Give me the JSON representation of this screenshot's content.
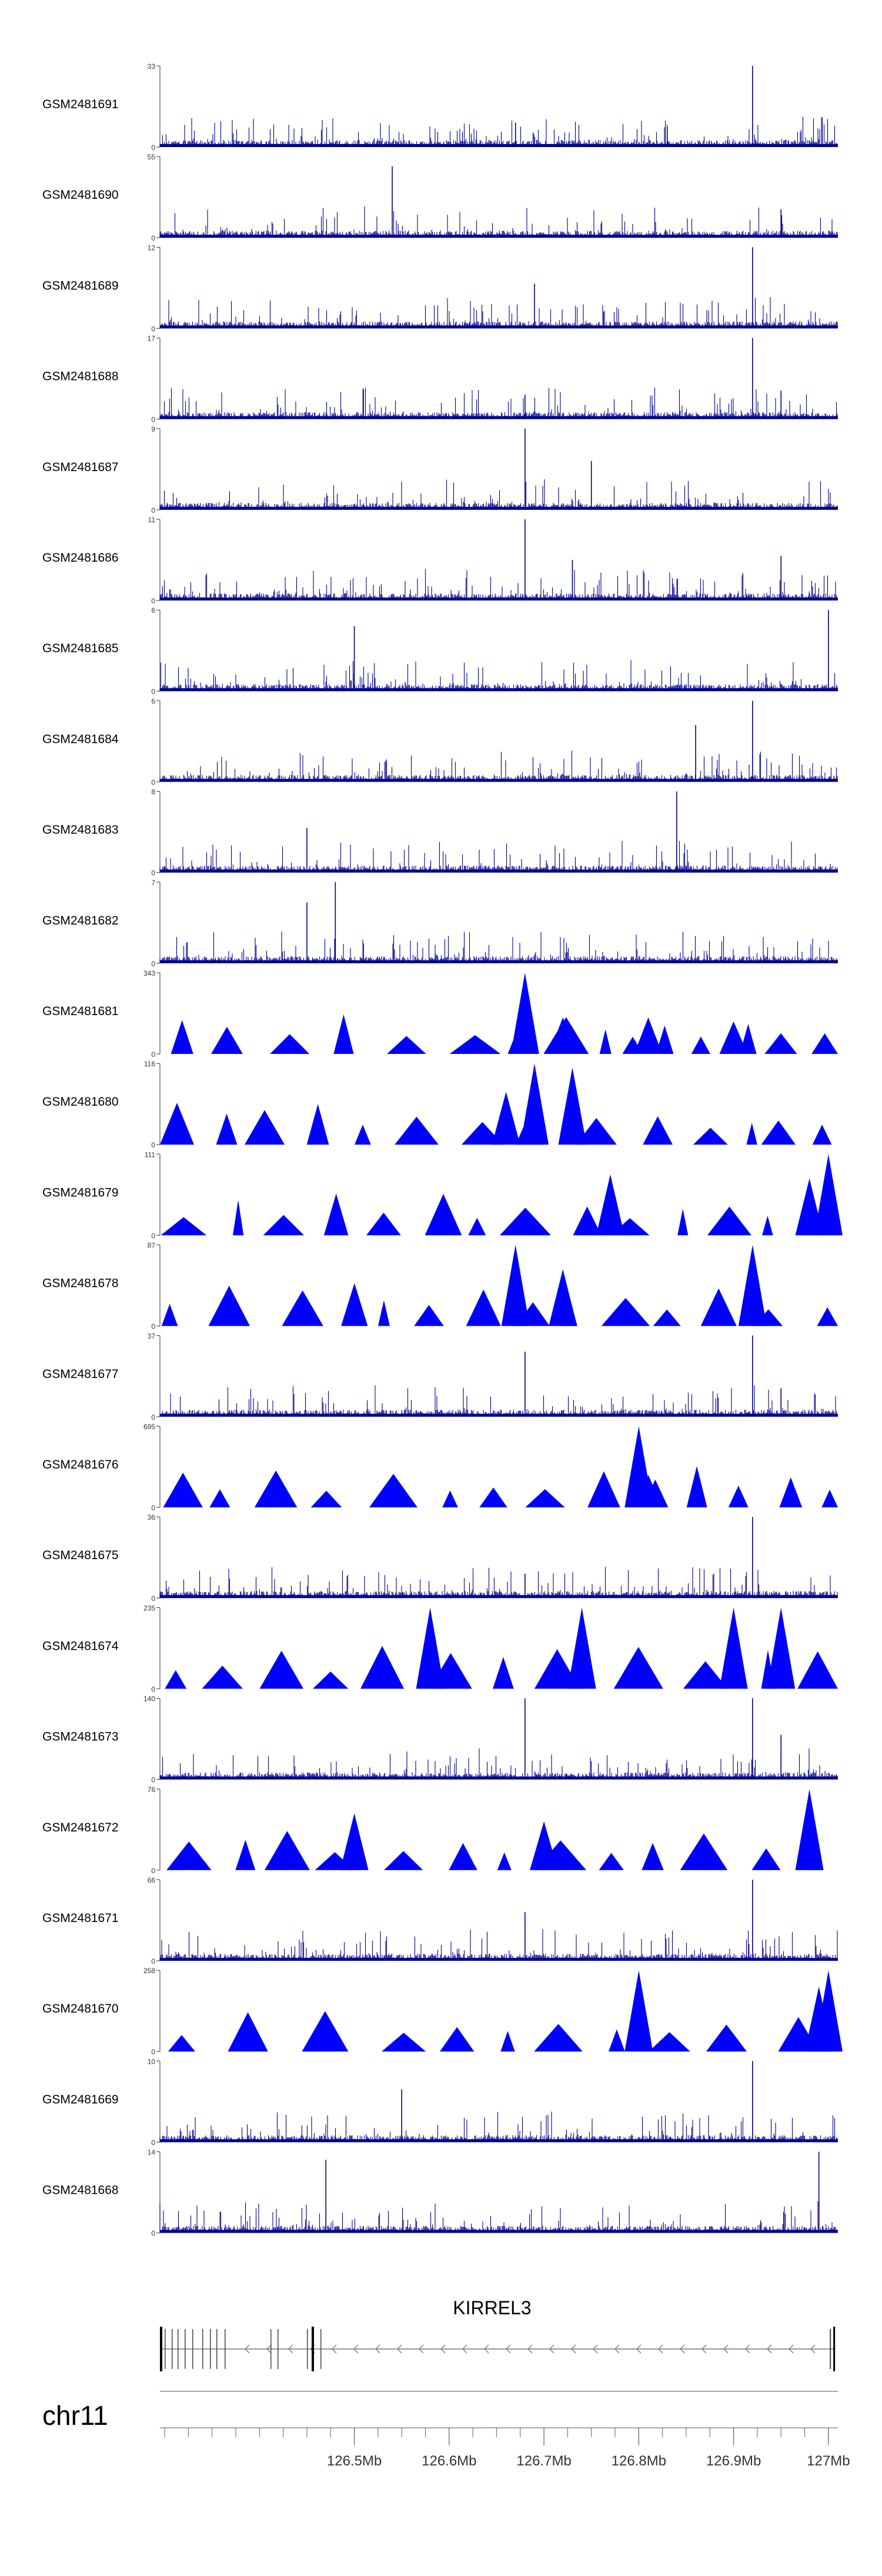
{
  "chart_data": {
    "type": "genome-tracks",
    "track_color": "#0000ff",
    "signal_color": "#00008b",
    "tracks": [
      {
        "name": "GSM2481691",
        "ymax": "33",
        "style": "signal",
        "peaks": [
          [
            126.67,
            0.3
          ],
          [
            126.92,
            1.0
          ],
          [
            126.83,
            0.25
          ]
        ]
      },
      {
        "name": "GSM2481690",
        "ymax": "55",
        "style": "signal",
        "peaks": [
          [
            126.54,
            0.88
          ],
          [
            126.95,
            0.35
          ]
        ]
      },
      {
        "name": "GSM2481689",
        "ymax": "12",
        "style": "signal",
        "peaks": [
          [
            126.92,
            1.0
          ],
          [
            126.69,
            0.55
          ]
        ]
      },
      {
        "name": "GSM2481688",
        "ymax": "17",
        "style": "signal",
        "peaks": [
          [
            126.92,
            1.0
          ],
          [
            126.95,
            0.35
          ],
          [
            126.68,
            0.3
          ]
        ]
      },
      {
        "name": "GSM2481687",
        "ymax": "9",
        "style": "signal",
        "peaks": [
          [
            126.68,
            1.0
          ],
          [
            126.75,
            0.6
          ]
        ]
      },
      {
        "name": "GSM2481686",
        "ymax": "11",
        "style": "signal",
        "peaks": [
          [
            126.68,
            1.0
          ],
          [
            126.73,
            0.5
          ],
          [
            126.95,
            0.55
          ]
        ]
      },
      {
        "name": "GSM2481685",
        "ymax": "6",
        "style": "signal",
        "peaks": [
          [
            127.0,
            1.0
          ],
          [
            126.5,
            0.8
          ]
        ]
      },
      {
        "name": "GSM2481684",
        "ymax": "6",
        "style": "signal",
        "peaks": [
          [
            126.92,
            1.0
          ],
          [
            126.86,
            0.7
          ]
        ]
      },
      {
        "name": "GSM2481683",
        "ymax": "8",
        "style": "signal",
        "peaks": [
          [
            126.84,
            1.0
          ],
          [
            126.45,
            0.55
          ]
        ]
      },
      {
        "name": "GSM2481682",
        "ymax": "7",
        "style": "signal",
        "peaks": [
          [
            126.48,
            1.0
          ],
          [
            126.45,
            0.75
          ]
        ]
      },
      {
        "name": "GSM2481681",
        "ymax": "343",
        "style": "triangles",
        "peaks": [
          [
            126.68,
            1.0
          ],
          [
            126.72,
            0.45
          ],
          [
            126.81,
            0.45
          ],
          [
            126.9,
            0.4
          ]
        ]
      },
      {
        "name": "GSM2481680",
        "ymax": "116",
        "style": "triangles",
        "peaks": [
          [
            126.69,
            1.0
          ],
          [
            126.73,
            0.95
          ],
          [
            126.66,
            0.65
          ]
        ]
      },
      {
        "name": "GSM2481679",
        "ymax": "111",
        "style": "triangles",
        "peaks": [
          [
            127.0,
            1.0
          ],
          [
            126.77,
            0.75
          ],
          [
            126.98,
            0.7
          ]
        ]
      },
      {
        "name": "GSM2481678",
        "ymax": "87",
        "style": "triangles",
        "peaks": [
          [
            126.67,
            1.0
          ],
          [
            126.92,
            1.0
          ],
          [
            126.72,
            0.7
          ]
        ]
      },
      {
        "name": "GSM2481677",
        "ymax": "37",
        "style": "signal",
        "peaks": [
          [
            126.92,
            1.0
          ],
          [
            126.68,
            0.8
          ],
          [
            126.95,
            0.35
          ]
        ]
      },
      {
        "name": "GSM2481676",
        "ymax": "695",
        "style": "triangles",
        "peaks": [
          [
            126.8,
            1.0
          ],
          [
            126.81,
            0.4
          ]
        ]
      },
      {
        "name": "GSM2481675",
        "ymax": "36",
        "style": "signal",
        "peaks": [
          [
            126.92,
            1.0
          ],
          [
            126.68,
            0.3
          ]
        ]
      },
      {
        "name": "GSM2481674",
        "ymax": "235",
        "style": "triangles",
        "peaks": [
          [
            126.58,
            1.0
          ],
          [
            126.74,
            1.0
          ],
          [
            126.9,
            1.0
          ],
          [
            126.95,
            1.0
          ]
        ]
      },
      {
        "name": "GSM2481673",
        "ymax": "140",
        "style": "signal",
        "peaks": [
          [
            126.68,
            1.0
          ],
          [
            126.92,
            1.0
          ],
          [
            126.95,
            0.55
          ]
        ]
      },
      {
        "name": "GSM2481672",
        "ymax": "76",
        "style": "triangles",
        "peaks": [
          [
            126.5,
            0.7
          ],
          [
            126.7,
            0.6
          ],
          [
            126.98,
            1.0
          ]
        ]
      },
      {
        "name": "GSM2481671",
        "ymax": "66",
        "style": "signal",
        "peaks": [
          [
            126.92,
            1.0
          ],
          [
            126.68,
            0.6
          ]
        ]
      },
      {
        "name": "GSM2481670",
        "ymax": "258",
        "style": "triangles",
        "peaks": [
          [
            126.8,
            1.0
          ],
          [
            127.0,
            1.0
          ],
          [
            126.99,
            0.8
          ]
        ]
      },
      {
        "name": "GSM2481669",
        "ymax": "10",
        "style": "signal",
        "peaks": [
          [
            126.92,
            1.0
          ],
          [
            126.55,
            0.65
          ]
        ]
      },
      {
        "name": "GSM2481668",
        "ymax": "14",
        "style": "signal",
        "peaks": [
          [
            126.99,
            1.0
          ],
          [
            126.47,
            0.9
          ]
        ]
      }
    ],
    "baseline_label": "0",
    "gene": {
      "name": "KIRREL3",
      "start": 126.295,
      "end": 127.007,
      "strand": "-"
    },
    "chromosome": "chr11",
    "x_range": [
      126.295,
      127.01
    ],
    "x_ticks": [
      {
        "value": 126.5,
        "label": "126.5Mb"
      },
      {
        "value": 126.6,
        "label": "126.6Mb"
      },
      {
        "value": 126.7,
        "label": "126.7Mb"
      },
      {
        "value": 126.8,
        "label": "126.8Mb"
      },
      {
        "value": 126.9,
        "label": "126.9Mb"
      },
      {
        "value": 127.0,
        "label": "127Mb"
      }
    ]
  }
}
